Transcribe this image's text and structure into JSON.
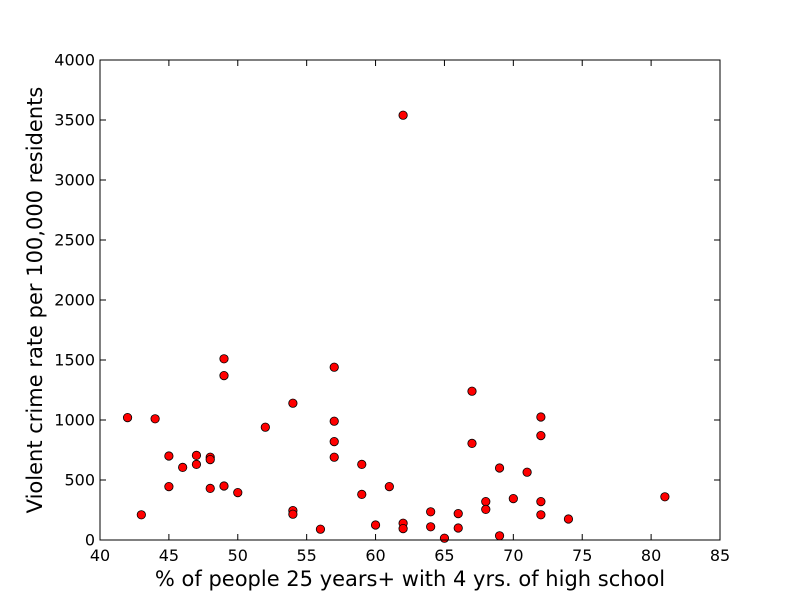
{
  "chart_data": {
    "type": "scatter",
    "title": "",
    "xlabel": "% of people 25 years+ with 4 yrs. of high school",
    "ylabel": "Violent crime rate per 100,000 residents",
    "xlim": [
      40,
      85
    ],
    "ylim": [
      0,
      4000
    ],
    "xticks": [
      40,
      45,
      50,
      55,
      60,
      65,
      70,
      75,
      80,
      85
    ],
    "yticks": [
      0,
      500,
      1000,
      1500,
      2000,
      2500,
      3000,
      3500,
      4000
    ],
    "grid": false,
    "legend": "none",
    "marker_color": "#ff0000",
    "marker_edge_color": "#000000",
    "series": [
      {
        "points": [
          [
            42,
            1020
          ],
          [
            43,
            210
          ],
          [
            44,
            1010
          ],
          [
            45,
            700
          ],
          [
            45,
            445
          ],
          [
            46,
            605
          ],
          [
            47,
            705
          ],
          [
            47,
            630
          ],
          [
            48,
            690
          ],
          [
            48,
            670
          ],
          [
            48,
            430
          ],
          [
            49,
            1510
          ],
          [
            49,
            1370
          ],
          [
            49,
            450
          ],
          [
            50,
            395
          ],
          [
            52,
            940
          ],
          [
            54,
            1140
          ],
          [
            54,
            245
          ],
          [
            54,
            215
          ],
          [
            56,
            90
          ],
          [
            57,
            1440
          ],
          [
            57,
            990
          ],
          [
            57,
            820
          ],
          [
            57,
            690
          ],
          [
            59,
            630
          ],
          [
            59,
            380
          ],
          [
            60,
            125
          ],
          [
            61,
            445
          ],
          [
            62,
            3540
          ],
          [
            62,
            140
          ],
          [
            62,
            95
          ],
          [
            64,
            235
          ],
          [
            64,
            110
          ],
          [
            65,
            15
          ],
          [
            66,
            220
          ],
          [
            66,
            100
          ],
          [
            67,
            1240
          ],
          [
            67,
            805
          ],
          [
            68,
            320
          ],
          [
            68,
            255
          ],
          [
            69,
            600
          ],
          [
            69,
            35
          ],
          [
            70,
            345
          ],
          [
            71,
            565
          ],
          [
            72,
            1025
          ],
          [
            72,
            870
          ],
          [
            72,
            320
          ],
          [
            72,
            210
          ],
          [
            74,
            175
          ],
          [
            81,
            360
          ]
        ]
      }
    ]
  }
}
